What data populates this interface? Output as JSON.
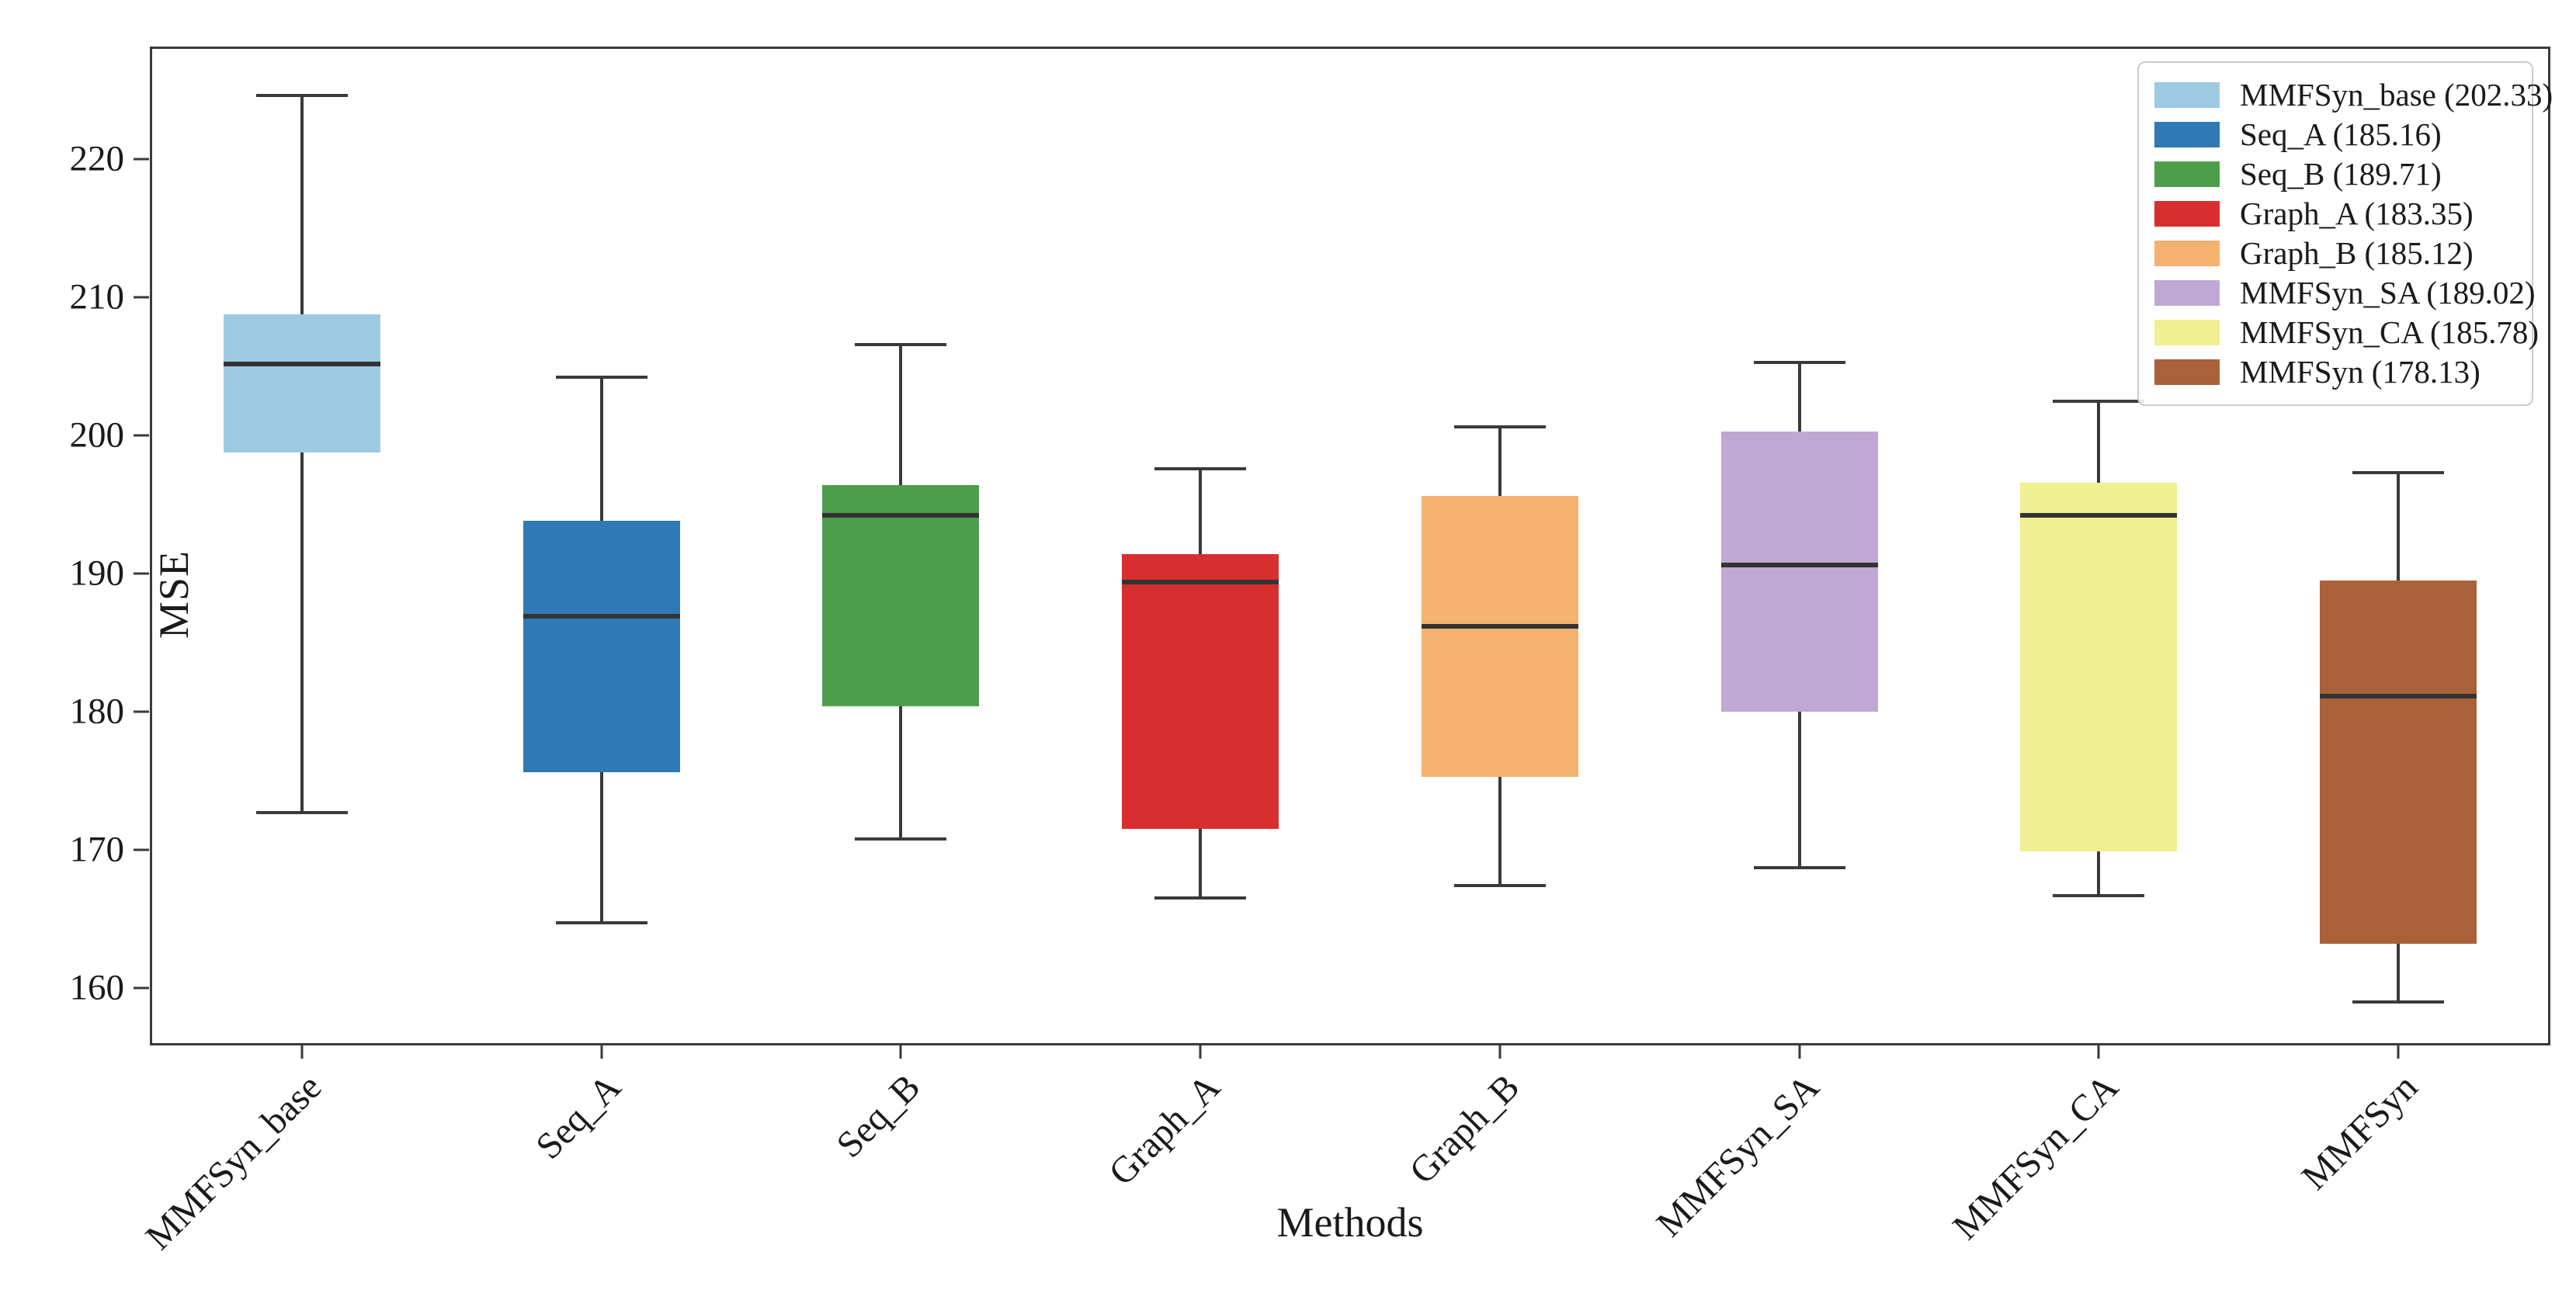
{
  "chart_data": {
    "type": "box",
    "title": "",
    "xlabel": "Methods",
    "ylabel": "MSE",
    "ylim": [
      156,
      228
    ],
    "yticks": [
      160,
      170,
      180,
      190,
      200,
      210,
      220
    ],
    "grid": false,
    "legend_position": "upper right",
    "categories": [
      "MMFSyn_base",
      "Seq_A",
      "Seq_B",
      "Graph_A",
      "Graph_B",
      "MMFSyn_SA",
      "MMFSyn_CA",
      "MMFSyn"
    ],
    "series": [
      {
        "name": "MMFSyn_base",
        "mean": 202.33,
        "legend_label": "MMFSyn_base (202.33)",
        "color": "#9ecae1",
        "whisker_low": 172.7,
        "q1": 198.8,
        "median": 205.2,
        "q3": 208.8,
        "whisker_high": 224.6
      },
      {
        "name": "Seq_A",
        "mean": 185.16,
        "legend_label": "Seq_A (185.16)",
        "color": "#3079b5",
        "whisker_low": 164.7,
        "q1": 175.6,
        "median": 186.9,
        "q3": 193.8,
        "whisker_high": 204.2
      },
      {
        "name": "Seq_B",
        "mean": 189.71,
        "legend_label": "Seq_B (189.71)",
        "color": "#4d9e4b",
        "whisker_low": 170.8,
        "q1": 180.4,
        "median": 194.2,
        "q3": 196.4,
        "whisker_high": 206.6
      },
      {
        "name": "Graph_A",
        "mean": 183.35,
        "legend_label": "Graph_A (183.35)",
        "color": "#d72f2f",
        "whisker_low": 166.5,
        "q1": 171.5,
        "median": 189.4,
        "q3": 191.4,
        "whisker_high": 197.6
      },
      {
        "name": "Graph_B",
        "mean": 185.12,
        "legend_label": "Graph_B (185.12)",
        "color": "#f5b16f",
        "whisker_low": 167.4,
        "q1": 175.3,
        "median": 186.2,
        "q3": 195.6,
        "whisker_high": 200.6
      },
      {
        "name": "MMFSyn_SA",
        "mean": 189.02,
        "legend_label": "MMFSyn_SA (189.02)",
        "color": "#bfa8d3",
        "whisker_low": 168.7,
        "q1": 180.0,
        "median": 190.6,
        "q3": 200.3,
        "whisker_high": 205.3
      },
      {
        "name": "MMFSyn_CA",
        "mean": 185.78,
        "legend_label": "MMFSyn_CA (185.78)",
        "color": "#eef092",
        "whisker_low": 166.7,
        "q1": 169.9,
        "median": 194.2,
        "q3": 196.6,
        "whisker_high": 202.5
      },
      {
        "name": "MMFSyn",
        "mean": 178.13,
        "legend_label": "MMFSyn (178.13)",
        "color": "#a9613a",
        "whisker_low": 159.0,
        "q1": 163.2,
        "median": 181.1,
        "q3": 189.5,
        "whisker_high": 197.3
      }
    ]
  },
  "colors": {
    "axis_line": "#3a3a3a",
    "median_line": "#333333",
    "text": "#1a1a1a",
    "legend_border": "#cccccc",
    "background": "#ffffff"
  }
}
